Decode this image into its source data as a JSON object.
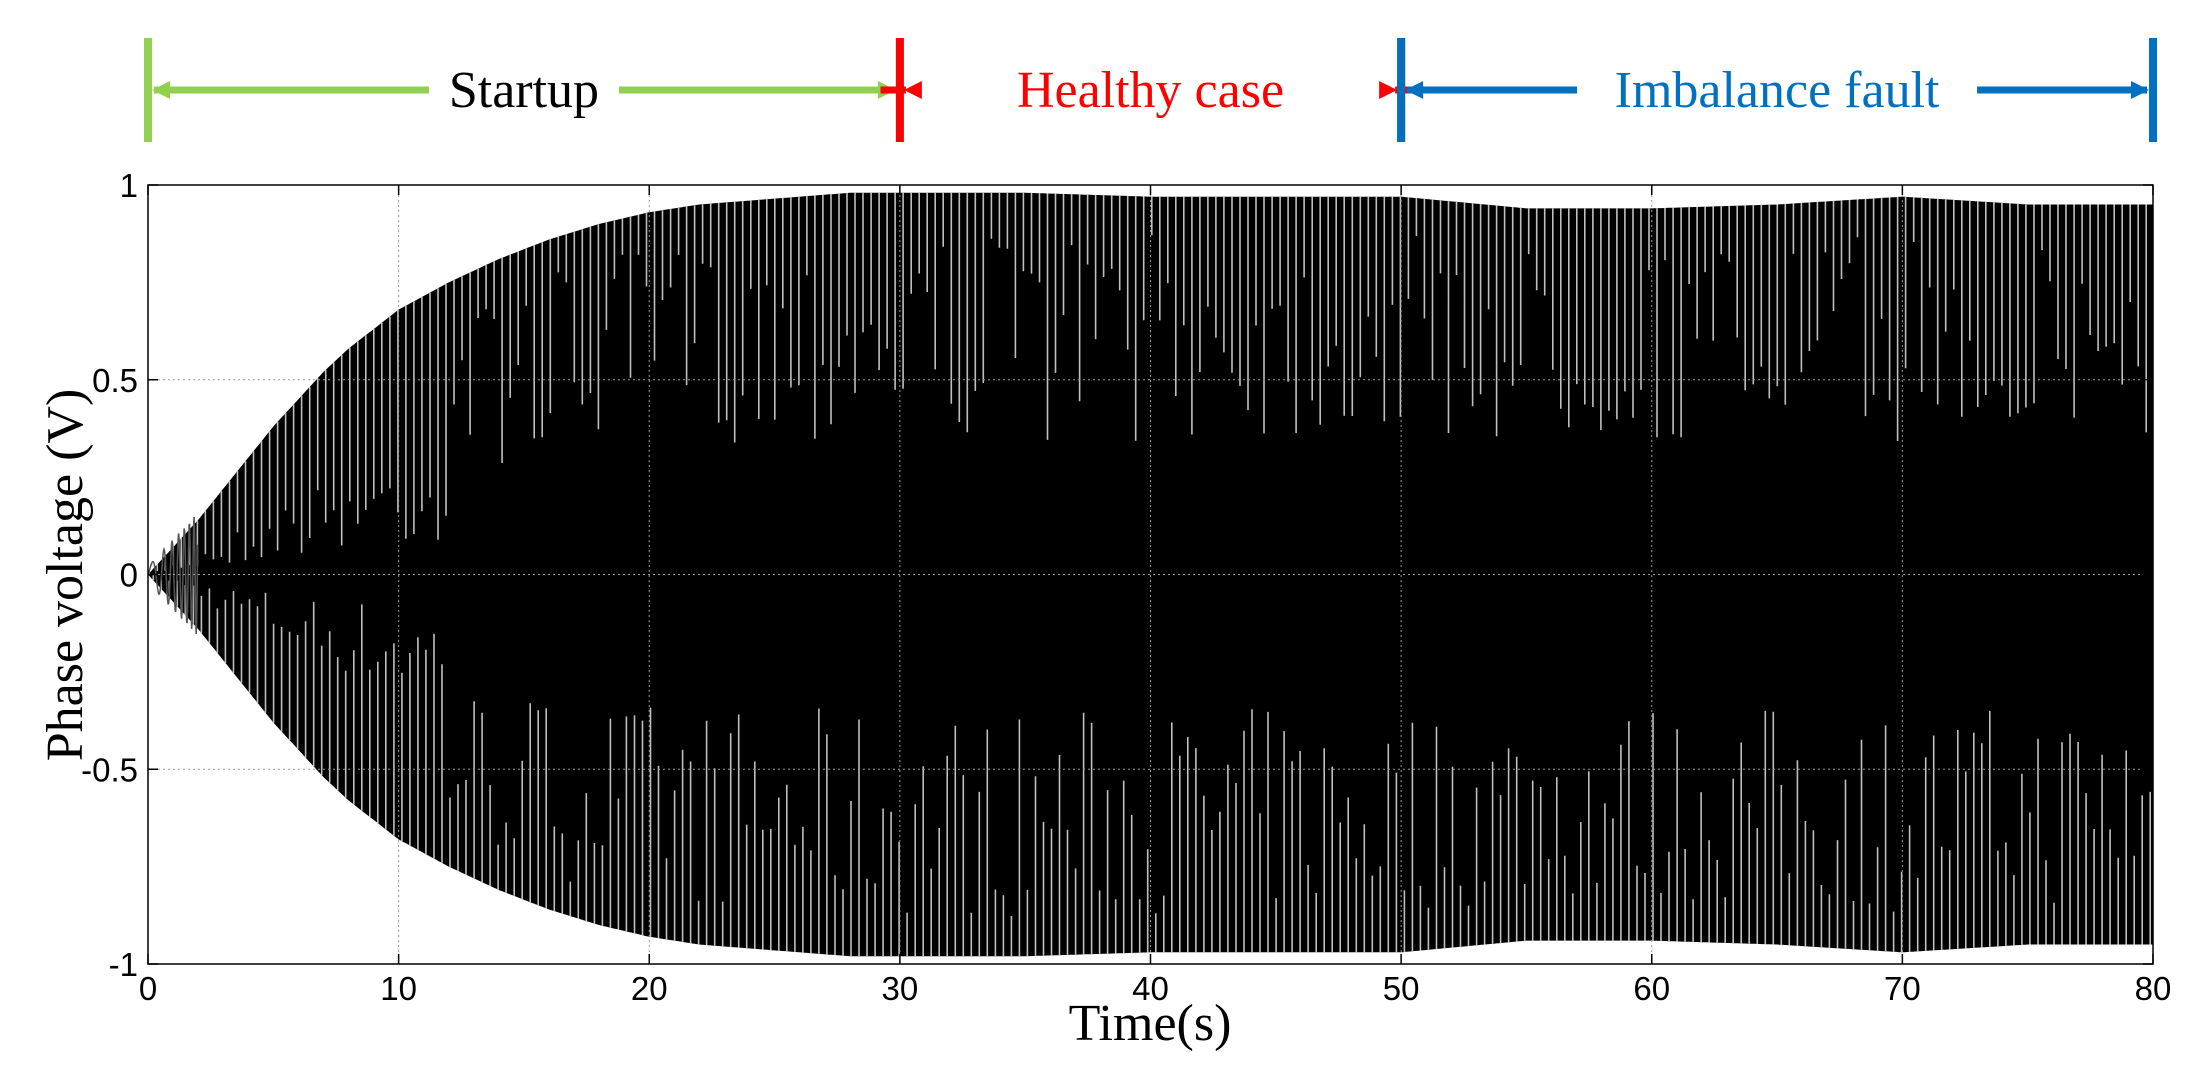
{
  "chart_data": {
    "type": "line",
    "title": "",
    "xlabel": "Time(s)",
    "ylabel": "Phase voltage (V)",
    "xlim": [
      0,
      80
    ],
    "ylim": [
      -1,
      1
    ],
    "x_ticks": [
      0,
      10,
      20,
      30,
      40,
      50,
      60,
      70,
      80
    ],
    "x_tick_labels": [
      "0",
      "10",
      "20",
      "30",
      "40",
      "50",
      "60",
      "70",
      "80"
    ],
    "y_ticks": [
      1,
      0.5,
      0,
      -0.5,
      -1
    ],
    "y_tick_labels": [
      "1",
      "0.5",
      "0",
      "-0.5",
      "-1"
    ],
    "grid": "dotted",
    "series": [
      {
        "name": "Phase voltage",
        "color": "#000000",
        "envelope": {
          "t": [
            0,
            1,
            2,
            3,
            4,
            5,
            6,
            7,
            8,
            9,
            10,
            12,
            14,
            16,
            18,
            20,
            22,
            24,
            26,
            28,
            30,
            35,
            40,
            45,
            50,
            55,
            60,
            65,
            70,
            75,
            80
          ],
          "amplitude": [
            0.0,
            0.07,
            0.14,
            0.22,
            0.3,
            0.38,
            0.45,
            0.52,
            0.58,
            0.63,
            0.68,
            0.75,
            0.81,
            0.86,
            0.9,
            0.93,
            0.95,
            0.96,
            0.97,
            0.98,
            0.98,
            0.98,
            0.97,
            0.97,
            0.97,
            0.94,
            0.94,
            0.95,
            0.97,
            0.95,
            0.95
          ]
        }
      }
    ],
    "phases": [
      {
        "label": "Startup",
        "start": 0,
        "end": 30,
        "color": "#92d050"
      },
      {
        "label": "Healthy case",
        "start": 30,
        "end": 50,
        "color": "#ff0000"
      },
      {
        "label": "Imbalance fault",
        "start": 50,
        "end": 80,
        "color": "#0070c0"
      }
    ]
  }
}
